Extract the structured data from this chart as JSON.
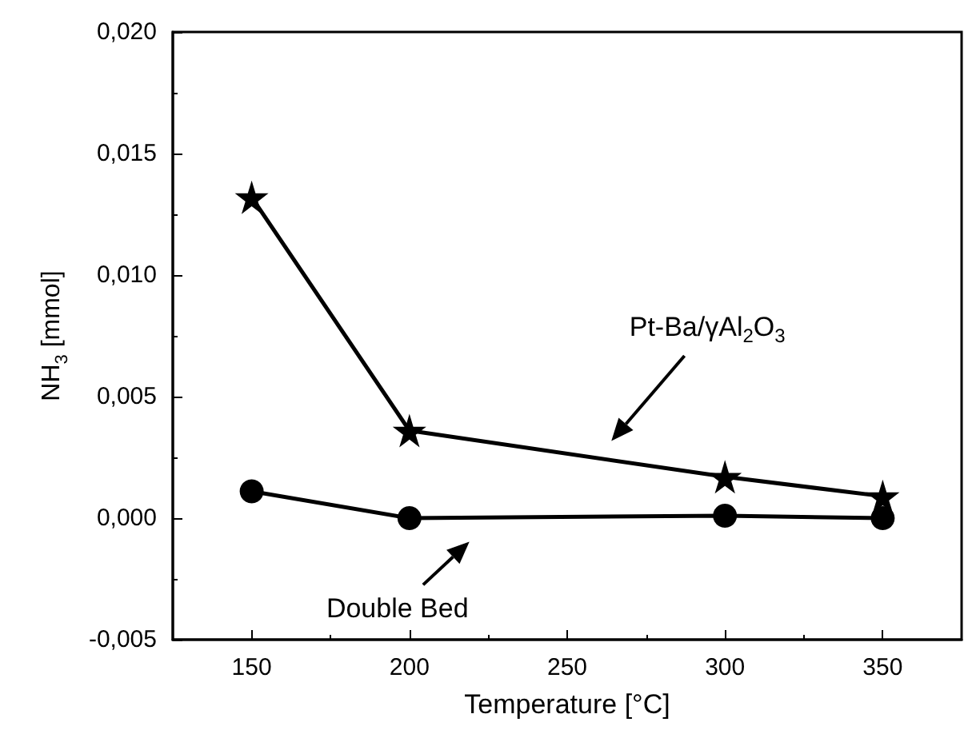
{
  "chart_data": {
    "type": "line",
    "xlabel": "Temperature [°C]",
    "ylabel": "NH$_{3}$ [mmol]",
    "x": [
      150,
      200,
      300,
      350
    ],
    "series": [
      {
        "color": "#000000",
        "marker": "star",
        "values": [
          0.0132,
          0.0036,
          0.0017,
          0.0009
        ]
      },
      {
        "color": "#000000",
        "marker": "circle",
        "values": [
          0.0011,
          0.0,
          0.0001,
          0.0
        ]
      }
    ],
    "xlim": [
      125,
      375
    ],
    "xticks": [
      150,
      200,
      250,
      300,
      350
    ],
    "ylim": [
      -0.005,
      0.02
    ],
    "yticks": [
      {
        "value": -0.005,
        "label": "-0,005"
      },
      {
        "value": 0,
        "label": "0,000"
      },
      {
        "value": 0.005,
        "label": "0,005"
      },
      {
        "value": 0.01,
        "label": "0,010"
      },
      {
        "value": 0.015,
        "label": "0,015"
      },
      {
        "value": 0.02,
        "label": "0,020"
      }
    ],
    "annotations": [
      "Pt-Ba/γAl$_{2}$O$_{3}$",
      "Double Bed"
    ],
    "line_style": "solid"
  }
}
